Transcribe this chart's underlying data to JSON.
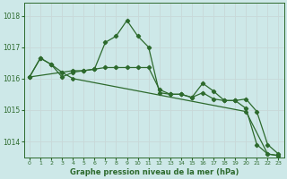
{
  "title": "Graphe pression niveau de la mer (hPa)",
  "background_color": "#cde8e8",
  "grid_color": "#c8d8d8",
  "line_color": "#2d6a2d",
  "xlim": [
    -0.5,
    23.5
  ],
  "ylim": [
    1013.5,
    1018.4
  ],
  "yticks": [
    1014,
    1015,
    1016,
    1017,
    1018
  ],
  "xticks": [
    0,
    1,
    2,
    3,
    4,
    5,
    6,
    7,
    8,
    9,
    10,
    11,
    12,
    13,
    14,
    15,
    16,
    17,
    18,
    19,
    20,
    21,
    22,
    23
  ],
  "series": [
    {
      "x": [
        0,
        1,
        2,
        3,
        4,
        5,
        6,
        7,
        8,
        9,
        10,
        11,
        12,
        13,
        14,
        15,
        16,
        17,
        18,
        19,
        20,
        21,
        22,
        23
      ],
      "y": [
        1016.05,
        1016.65,
        1016.45,
        1016.05,
        1016.2,
        1016.25,
        1016.3,
        1017.15,
        1017.35,
        1017.85,
        1017.35,
        1017.0,
        1015.55,
        1015.5,
        1015.5,
        1015.4,
        1015.85,
        1015.6,
        1015.3,
        1015.3,
        1015.05,
        1013.9,
        1013.6,
        1013.55
      ]
    },
    {
      "x": [
        0,
        1,
        2,
        3,
        4,
        5,
        6,
        7,
        8,
        9,
        10,
        11,
        12,
        13,
        14,
        15,
        16,
        17,
        18,
        19,
        20,
        21,
        22,
        23
      ],
      "y": [
        1016.05,
        1016.65,
        1016.45,
        1016.2,
        1016.25,
        1016.25,
        1016.3,
        1016.35,
        1016.35,
        1016.35,
        1016.35,
        1016.35,
        1015.65,
        1015.5,
        1015.5,
        1015.4,
        1015.55,
        1015.35,
        1015.3,
        1015.3,
        1015.35,
        1014.95,
        1013.9,
        1013.6
      ]
    },
    {
      "x": [
        0,
        3,
        4,
        20,
        22,
        23
      ],
      "y": [
        1016.05,
        1016.2,
        1016.0,
        1014.95,
        1013.6,
        1013.55
      ]
    }
  ],
  "figsize": [
    3.2,
    2.0
  ],
  "dpi": 100
}
